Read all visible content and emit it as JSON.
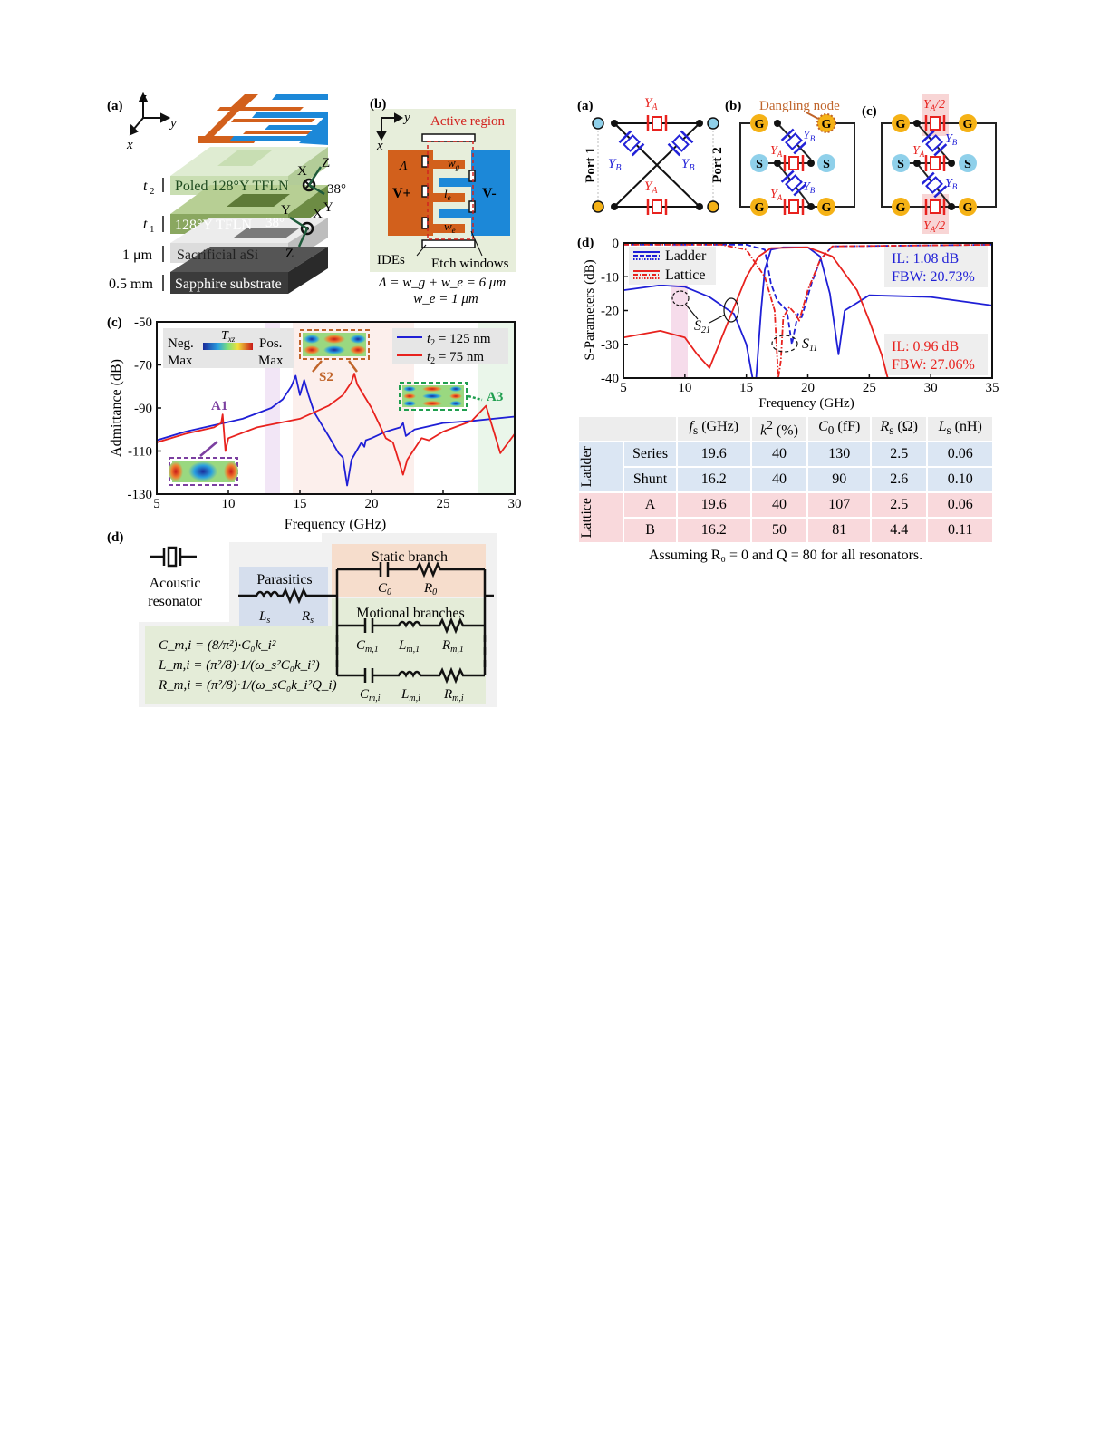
{
  "left": {
    "a": {
      "label": "(a)",
      "axes": {
        "z": "z",
        "y": "y",
        "x": "x"
      },
      "layers": [
        {
          "thick": "t",
          "thick_sub": "2",
          "name": "Poled 128°Y TFLN"
        },
        {
          "thick": "t",
          "thick_sub": "1",
          "name": "128°Y TFLN"
        },
        {
          "thick": "1 μm",
          "name": "Sacrificial aSi"
        },
        {
          "thick": "0.5 mm",
          "name": "Sapphire substrate"
        }
      ],
      "crystal_top": {
        "x": "X",
        "z": "Z",
        "y": "Y",
        "angle": "38°"
      },
      "crystal_bottom": {
        "x": "X",
        "z": "Z",
        "y": "Y",
        "angle": "38°"
      }
    },
    "b": {
      "label": "(b)",
      "axes": {
        "y": "y",
        "x": "x"
      },
      "active_region": "Active region",
      "v_plus": "V+",
      "v_minus": "V-",
      "lambda": "Λ",
      "wg": {
        "main": "w",
        "sub": "g"
      },
      "le": {
        "main": "l",
        "sub": "e"
      },
      "we": {
        "main": "w",
        "sub": "e"
      },
      "ides": "IDEs",
      "etch_windows": "Etch windows",
      "eq1": "Λ = w_g + w_e = 6 μm",
      "eq2": "w_e = 1 μm"
    },
    "c": {
      "label": "(c)",
      "colorbar": {
        "neg": "Neg.",
        "neg2": "Max",
        "pos": "Pos.",
        "pos2": "Max",
        "t": "T",
        "t_sub": "xz"
      },
      "modes": {
        "a1": "A1",
        "s2": "S2",
        "a3": "A3"
      },
      "colors": {
        "blue": "#1f1fd6",
        "red": "#e8221e",
        "a1": "#7b3fa0",
        "s2": "#c0642a",
        "a3": "#1f9e4e"
      }
    },
    "d": {
      "label": "(d)",
      "acoustic": "Acoustic",
      "resonator": "resonator",
      "parasitics": "Parasitics",
      "static_branch": "Static branch",
      "motional_branches": "Motional branches",
      "Ls": {
        "main": "L",
        "sub": "s"
      },
      "Rs": {
        "main": "R",
        "sub": "s"
      },
      "C0": {
        "main": "C",
        "sub": "0"
      },
      "R0": {
        "main": "R",
        "sub": "0"
      },
      "Cm1": {
        "main": "C",
        "sub": "m,1"
      },
      "Lm1": {
        "main": "L",
        "sub": "m,1"
      },
      "Rm1": {
        "main": "R",
        "sub": "m,1"
      },
      "Cmi": {
        "main": "C",
        "sub": "m,i"
      },
      "Lmi": {
        "main": "L",
        "sub": "m,i"
      },
      "Rmi": {
        "main": "R",
        "sub": "m,i"
      },
      "eq_c": "C_m,i = (8/π²)·C₀k_i²",
      "eq_l": "L_m,i = (π²/8)·1/(ω_s²C₀k_i²)",
      "eq_r": "R_m,i = (π²/8)·1/(ω_sC₀k_i²Q_i)"
    }
  },
  "right": {
    "a": {
      "label": "(a)",
      "ya": "Y",
      "ya_sub": "A",
      "yb": "Y",
      "yb_sub": "B",
      "port1": "Port 1",
      "port2": "Port 2"
    },
    "b": {
      "label": "(b)",
      "dangling": "Dangling node",
      "g": "G",
      "s": "S",
      "ya": "Y",
      "ya_sub": "A",
      "yb": "Y",
      "yb_sub": "B"
    },
    "c": {
      "label": "(c)",
      "g": "G",
      "s": "S",
      "ya_half": "/2",
      "ya": "Y",
      "ya_sub": "A",
      "yb": "Y",
      "yb_sub": "B"
    },
    "d": {
      "label": "(d)",
      "legend": [
        "Ladder",
        "Lattice"
      ],
      "s21": {
        "main": "S",
        "sub": "21"
      },
      "s11": {
        "main": "S",
        "sub": "11"
      },
      "ladder_il": "IL: 1.08 dB",
      "ladder_fbw": "FBW: 20.73%",
      "lattice_il": "IL: 0.96 dB",
      "lattice_fbw": "FBW: 27.06%"
    },
    "table": {
      "headers": [
        {
          "main": "f",
          "sub": "s",
          "unit": " (GHz)"
        },
        {
          "main": "k",
          "sup": "2",
          "unit": " (%)"
        },
        {
          "main": "C",
          "sub": "0",
          "unit": " (fF)"
        },
        {
          "main": "R",
          "sub": "s",
          "unit": " (Ω)"
        },
        {
          "main": "L",
          "sub": "s",
          "unit": " (nH)"
        }
      ],
      "groups": [
        {
          "name": "Ladder",
          "rows": [
            {
              "name": "Series",
              "cells": [
                "19.6",
                "40",
                "130",
                "2.5",
                "0.06"
              ]
            },
            {
              "name": "Shunt",
              "cells": [
                "16.2",
                "40",
                "90",
                "2.6",
                "0.10"
              ]
            }
          ]
        },
        {
          "name": "Lattice",
          "rows": [
            {
              "name": "A",
              "cells": [
                "19.6",
                "40",
                "107",
                "2.5",
                "0.06"
              ]
            },
            {
              "name": "B",
              "cells": [
                "16.2",
                "50",
                "81",
                "4.4",
                "0.11"
              ]
            }
          ]
        }
      ],
      "caption": "Assuming R₀ = 0 and Q = 80 for all resonators."
    }
  },
  "chart_data": [
    {
      "type": "line",
      "id": "left-c",
      "xlabel": "Frequency (GHz)",
      "ylabel": "Admittance (dB)",
      "xlim": [
        5,
        30
      ],
      "ylim": [
        -130,
        -50
      ],
      "xticks": [
        "5",
        "10",
        "15",
        "20",
        "25",
        "30"
      ],
      "yticks": [
        "-50",
        "-70",
        "-90",
        "-110",
        "-130"
      ],
      "legend_position": "top-right",
      "series": [
        {
          "name": "t2 = 125 nm",
          "legend_main": "t",
          "legend_sub": "2",
          "legend_rest": " = 125 nm",
          "color": "#1f1fd6",
          "x": [
            5,
            7,
            9,
            11,
            13,
            13.8,
            14.4,
            14.7,
            15,
            15.3,
            15.6,
            16,
            17,
            17.7,
            18,
            18.3,
            18.6,
            19.3,
            19.5,
            19.6,
            20,
            21,
            22,
            22.2,
            22.4,
            23,
            25,
            27,
            30
          ],
          "y": [
            -105,
            -101,
            -98,
            -95,
            -90,
            -86,
            -80,
            -75,
            -84,
            -77,
            -84,
            -92,
            -103,
            -111,
            -113,
            -126,
            -114,
            -106,
            -108,
            -105,
            -104,
            -101,
            -99,
            -97,
            -103,
            -100,
            -97,
            -96,
            -94
          ]
        },
        {
          "name": "t2 = 75 nm",
          "legend_main": "t",
          "legend_sub": "2",
          "legend_rest": " = 75 nm",
          "color": "#e8221e",
          "x": [
            5,
            7,
            9,
            9.5,
            9.6,
            9.8,
            10,
            12,
            15,
            17,
            18,
            18.6,
            18.8,
            19,
            20,
            21,
            21.5,
            22.2,
            22.5,
            23.5,
            24,
            25,
            27,
            28,
            29,
            30
          ],
          "y": [
            -106,
            -102,
            -99,
            -97,
            -93,
            -110,
            -104,
            -99,
            -95,
            -89,
            -84,
            -78,
            -74,
            -79,
            -90,
            -104,
            -106,
            -121,
            -114,
            -104,
            -105,
            -101,
            -96,
            -89,
            -111,
            -102
          ]
        }
      ]
    },
    {
      "type": "line",
      "id": "right-d",
      "xlabel": "Frequency (GHz)",
      "ylabel": "S-Parameters (dB)",
      "xlim": [
        5,
        35
      ],
      "ylim": [
        -40,
        0
      ],
      "xticks": [
        "5",
        "10",
        "15",
        "20",
        "25",
        "30",
        "35"
      ],
      "yticks": [
        "0",
        "-10",
        "-20",
        "-30",
        "-40"
      ],
      "legend_position": "top-left",
      "series": [
        {
          "name": "Ladder S21",
          "color": "#1f1fd6",
          "dash": "solid",
          "x": [
            5,
            8,
            10,
            12,
            14,
            15,
            15.5,
            15.8,
            16.2,
            16.5,
            17,
            18,
            20,
            21,
            21.8,
            22.5,
            23,
            25,
            30,
            35
          ],
          "y": [
            -14,
            -12.5,
            -13,
            -16,
            -21,
            -30,
            -40,
            -40,
            -20,
            -8,
            -2,
            -1.3,
            -1.3,
            -4,
            -15,
            -33,
            -20,
            -15.5,
            -16,
            -18.5
          ]
        },
        {
          "name": "Ladder S11",
          "color": "#1f1fd6",
          "dash": "dashed",
          "x": [
            5,
            15,
            16.5,
            17,
            17.5,
            18.3,
            18.7,
            19.2,
            19.5,
            20.3,
            21,
            22,
            35
          ],
          "y": [
            -0.5,
            -0.5,
            -2,
            -12,
            -17,
            -20,
            -30,
            -21,
            -22,
            -12,
            -5,
            -1,
            -0.5
          ]
        },
        {
          "name": "Lattice S21",
          "color": "#e8221e",
          "dash": "solid",
          "x": [
            5,
            8,
            10,
            11,
            12,
            13,
            14,
            15,
            16,
            17,
            20,
            22,
            24,
            25,
            26,
            26.5
          ],
          "y": [
            -28,
            -26,
            -28,
            -33,
            -37,
            -28,
            -19,
            -10,
            -4,
            -1.5,
            -1.3,
            -4,
            -14,
            -23,
            -33,
            -40
          ]
        },
        {
          "name": "Lattice S11",
          "color": "#e8221e",
          "dash": "dashdot",
          "x": [
            5,
            13,
            15,
            16.5,
            17.3,
            17.6,
            17.8,
            18,
            18.5,
            19,
            19.3,
            20,
            21,
            22,
            35
          ],
          "y": [
            -0.5,
            -0.5,
            -2,
            -10,
            -20,
            -40,
            -35,
            -22,
            -19,
            -21,
            -23,
            -14,
            -5,
            -1,
            -0.5
          ]
        }
      ]
    }
  ]
}
